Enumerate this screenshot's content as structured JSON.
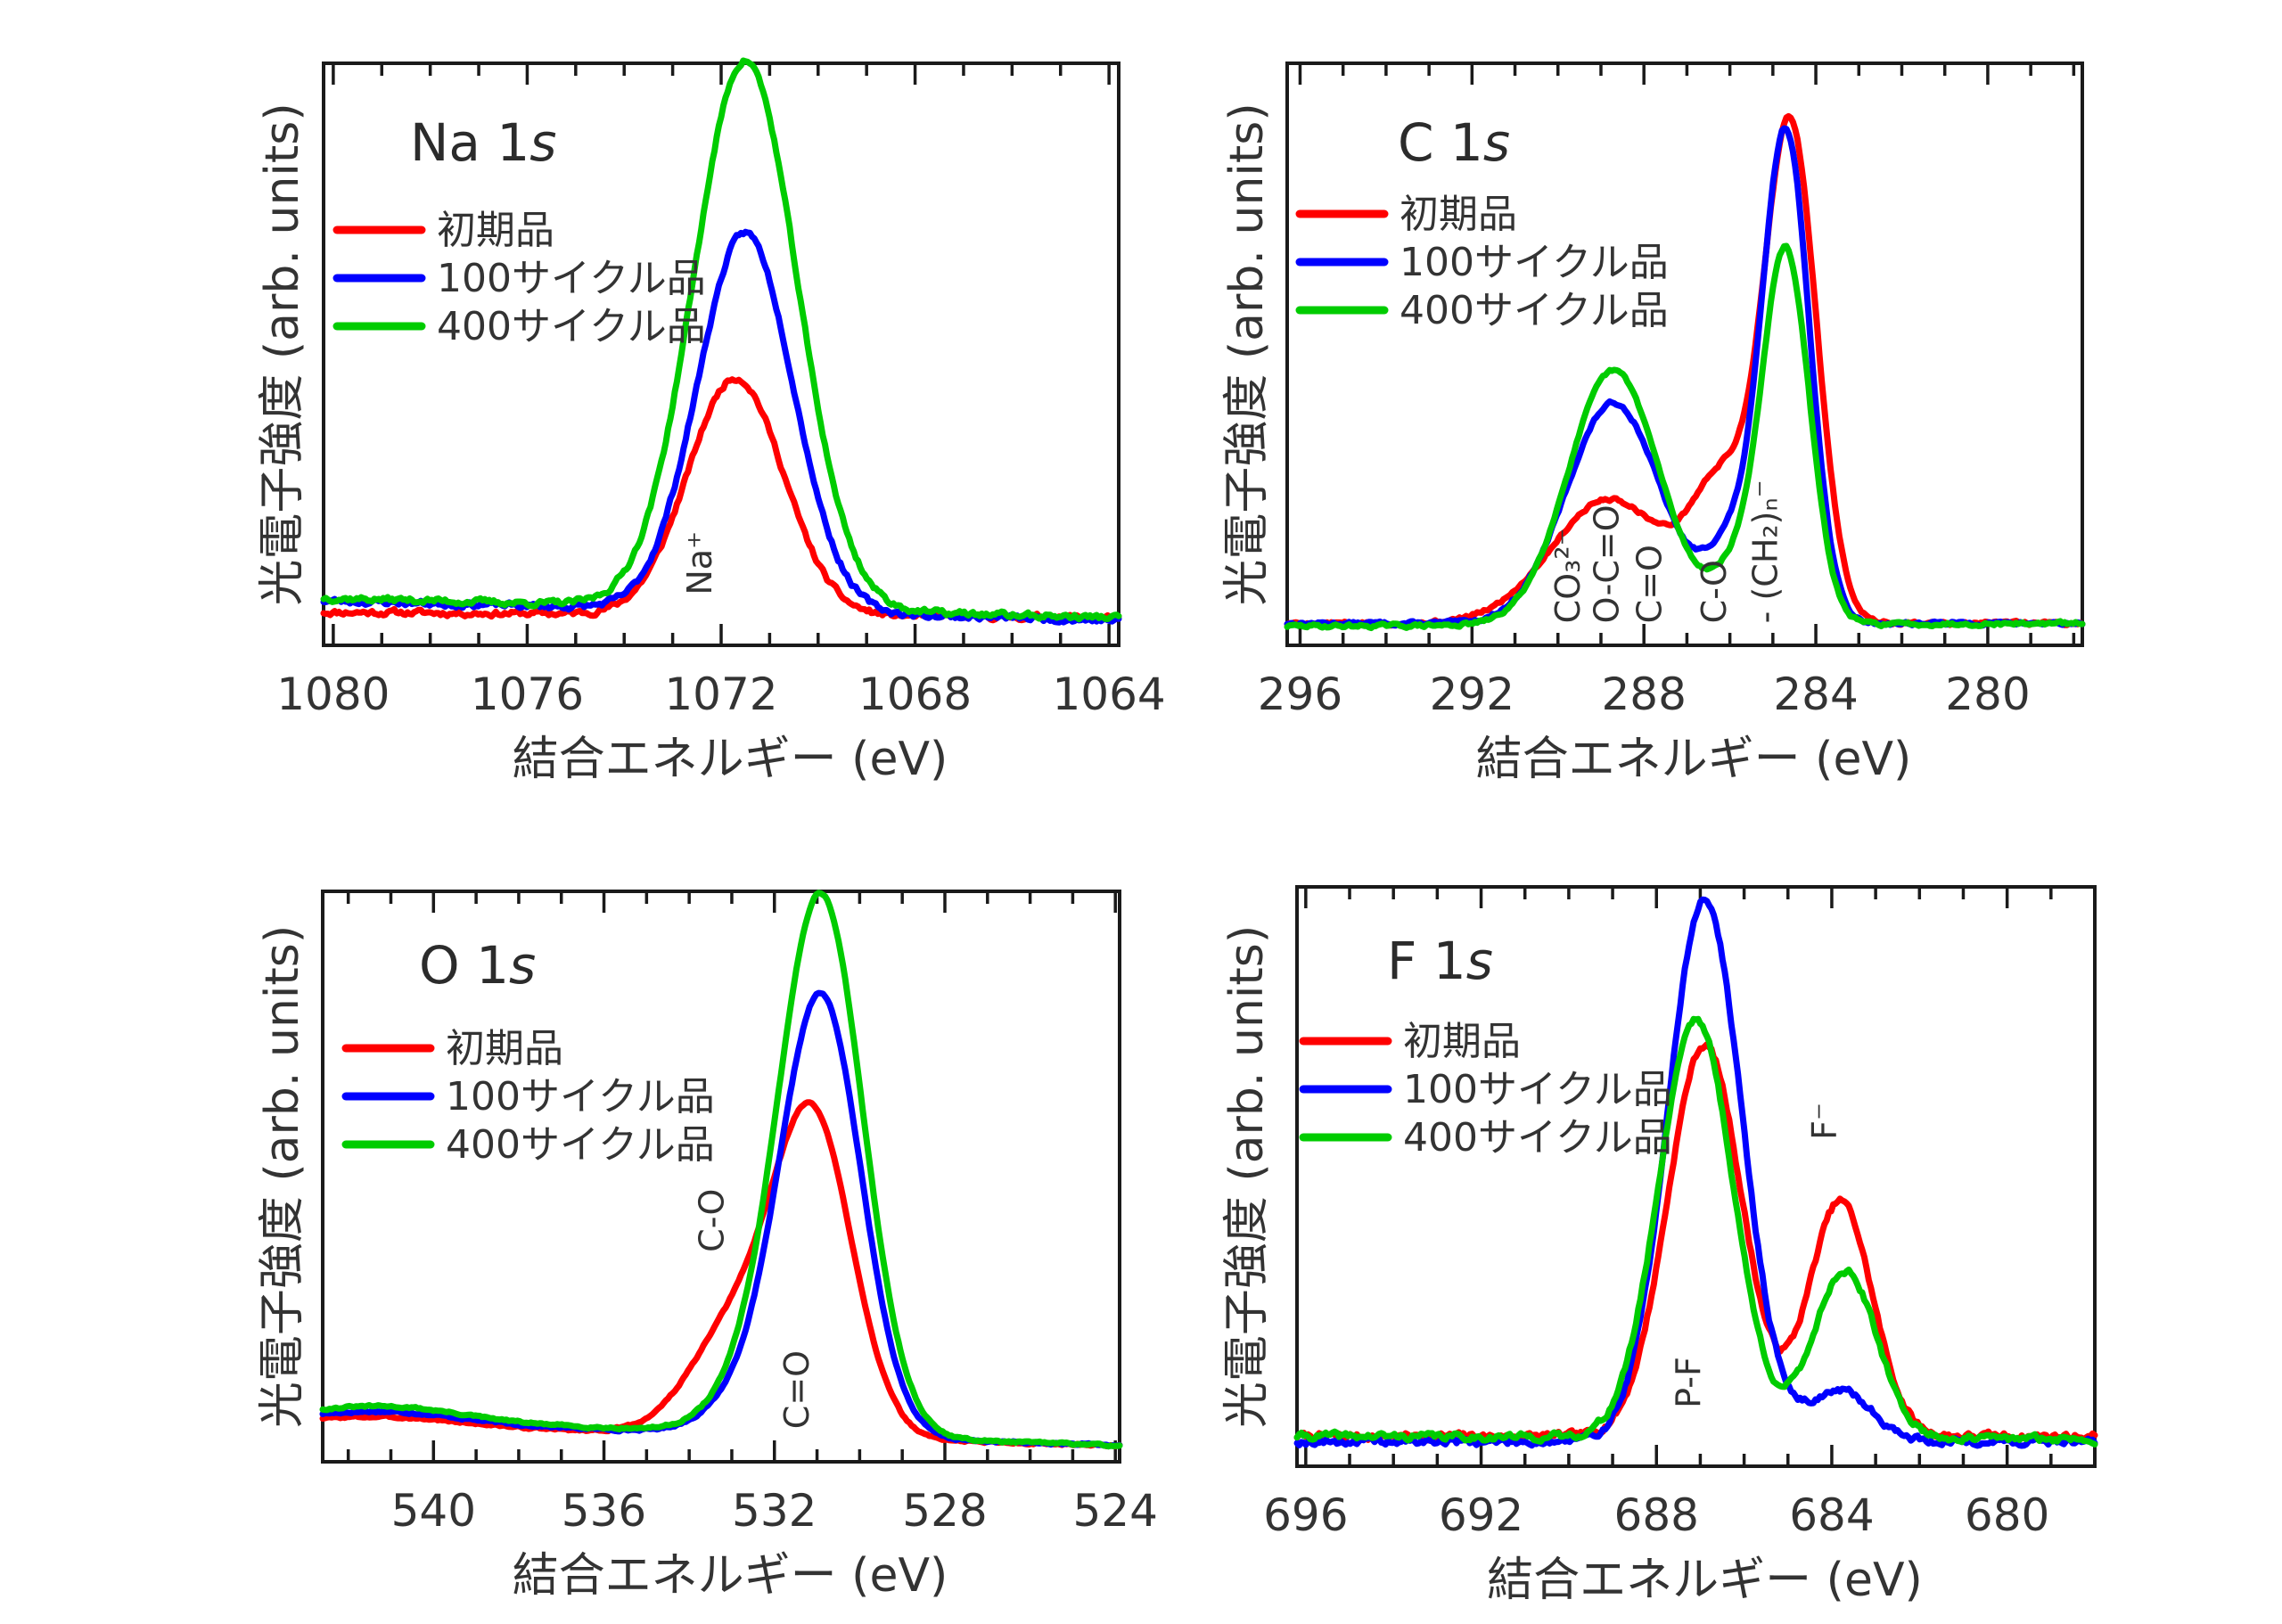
{
  "figure": {
    "y_axis_label": "光電子強度 (arb. units)",
    "x_axis_label": "結合エネルギー (eV)"
  },
  "legend": [
    {
      "label": "初期品",
      "color": "#ff0000"
    },
    {
      "label": "100サイクル品",
      "color": "#0000ff"
    },
    {
      "label": "400サイクル品",
      "color": "#00cc00"
    }
  ],
  "chart_data": [
    {
      "type": "line",
      "title": "Na 1s",
      "title_main": "Na 1",
      "title_italic": "s",
      "xlabel": "結合エネルギー (eV)",
      "ylabel": "光電子強度 (arb. units)",
      "xlim": [
        1080.2,
        1063.8
      ],
      "x_reversed": true,
      "xticks": [
        1080,
        1076,
        1072,
        1068,
        1064
      ],
      "minor_tick_step": 1,
      "ylim": [
        0,
        1.0
      ],
      "grid": false,
      "legend_position": "top-left",
      "annotations": [
        {
          "text": "Na⁺",
          "x": 1072.2,
          "y": 0.07,
          "rotation": -90
        }
      ],
      "series": [
        {
          "name": "初期品",
          "color": "#ff0000",
          "baseline": [
            0.04,
            0.03
          ],
          "peaks": [
            {
              "center": 1071.7,
              "height": 0.42,
              "fwhm": 2.3
            }
          ],
          "noise": 0.008,
          "seed": 11
        },
        {
          "name": "100サイクル品",
          "color": "#0000ff",
          "baseline": [
            0.06,
            0.025
          ],
          "peaks": [
            {
              "center": 1071.5,
              "height": 0.67,
              "fwhm": 2.3
            }
          ],
          "noise": 0.008,
          "seed": 23
        },
        {
          "name": "400サイクル品",
          "color": "#00cc00",
          "baseline": [
            0.065,
            0.03
          ],
          "peaks": [
            {
              "center": 1071.5,
              "height": 0.97,
              "fwhm": 2.5
            }
          ],
          "noise": 0.008,
          "seed": 37
        }
      ]
    },
    {
      "type": "line",
      "title": "C 1s",
      "title_main": "C 1",
      "title_italic": "s",
      "xlabel": "結合エネルギー (eV)",
      "ylabel": "光電子強度 (arb. units)",
      "xlim": [
        296.3,
        277.8
      ],
      "x_reversed": true,
      "xticks": [
        296,
        292,
        288,
        284,
        280
      ],
      "minor_tick_step": 1,
      "ylim": [
        0,
        1.0
      ],
      "grid": false,
      "legend_position": "top-left",
      "annotations": [
        {
          "text": "CO₃²⁻",
          "x": 289.5,
          "y": 0.02,
          "rotation": -90
        },
        {
          "text": "O-C=O",
          "x": 288.6,
          "y": 0.02,
          "rotation": -90
        },
        {
          "text": "C=O",
          "x": 287.6,
          "y": 0.02,
          "rotation": -90
        },
        {
          "text": "C-O",
          "x": 286.1,
          "y": 0.02,
          "rotation": -90
        },
        {
          "text": "- (CH₂)ₙ⁻",
          "x": 284.9,
          "y": 0.02,
          "rotation": -90
        }
      ],
      "series": [
        {
          "name": "初期品",
          "color": "#ff0000",
          "baseline": [
            0.02,
            0.02
          ],
          "peaks": [
            {
              "center": 284.6,
              "height": 0.88,
              "fwhm": 1.45
            },
            {
              "center": 286.2,
              "height": 0.22,
              "fwhm": 1.6
            },
            {
              "center": 288.8,
              "height": 0.22,
              "fwhm": 3.2
            }
          ],
          "noise": 0.005,
          "seed": 5
        },
        {
          "name": "100サイクル品",
          "color": "#0000ff",
          "baseline": [
            0.02,
            0.02
          ],
          "peaks": [
            {
              "center": 284.7,
              "height": 0.87,
              "fwhm": 1.3
            },
            {
              "center": 286.0,
              "height": 0.12,
              "fwhm": 1.3
            },
            {
              "center": 288.7,
              "height": 0.39,
              "fwhm": 2.6
            }
          ],
          "noise": 0.005,
          "seed": 13
        },
        {
          "name": "400サイクル品",
          "color": "#00cc00",
          "baseline": [
            0.015,
            0.02
          ],
          "peaks": [
            {
              "center": 284.7,
              "height": 0.66,
              "fwhm": 1.3
            },
            {
              "center": 285.9,
              "height": 0.08,
              "fwhm": 1.3
            },
            {
              "center": 288.7,
              "height": 0.45,
              "fwhm": 2.5
            }
          ],
          "noise": 0.005,
          "seed": 29
        }
      ]
    },
    {
      "type": "line",
      "title": "O 1s",
      "title_main": "O 1",
      "title_italic": "s",
      "xlabel": "結合エネルギー (eV)",
      "ylabel": "光電子強度 (arb. units)",
      "xlim": [
        542.6,
        523.9
      ],
      "x_reversed": true,
      "xticks": [
        540,
        536,
        532,
        528,
        524
      ],
      "minor_tick_step": 1,
      "ylim": [
        0,
        1.0
      ],
      "grid": false,
      "legend_position": "top-left",
      "annotations": [
        {
          "text": "C-O",
          "x": 533.2,
          "y": 0.36,
          "rotation": -90
        },
        {
          "text": "C=O",
          "x": 531.2,
          "y": 0.04,
          "rotation": -90
        }
      ],
      "series": [
        {
          "name": "初期品",
          "color": "#ff0000",
          "baseline": [
            0.05,
            0.01
          ],
          "peaks": [
            {
              "center": 531.1,
              "height": 0.57,
              "fwhm": 2.2
            },
            {
              "center": 533.0,
              "height": 0.18,
              "fwhm": 2.4
            },
            {
              "center": 541.0,
              "height": 0.015,
              "fwhm": 4.0
            }
          ],
          "noise": 0.003,
          "seed": 3
        },
        {
          "name": "100サイクル品",
          "color": "#0000ff",
          "baseline": [
            0.055,
            0.01
          ],
          "peaks": [
            {
              "center": 530.9,
              "height": 0.79,
              "fwhm": 2.2
            },
            {
              "center": 532.6,
              "height": 0.06,
              "fwhm": 2.2
            },
            {
              "center": 541.0,
              "height": 0.02,
              "fwhm": 4.0
            }
          ],
          "noise": 0.003,
          "seed": 17
        },
        {
          "name": "400サイクル品",
          "color": "#00cc00",
          "baseline": [
            0.06,
            0.01
          ],
          "peaks": [
            {
              "center": 530.9,
              "height": 0.97,
              "fwhm": 2.3
            },
            {
              "center": 532.6,
              "height": 0.06,
              "fwhm": 2.2
            },
            {
              "center": 541.0,
              "height": 0.025,
              "fwhm": 4.0
            }
          ],
          "noise": 0.003,
          "seed": 31
        }
      ]
    },
    {
      "type": "line",
      "title": "F 1s",
      "title_main": "F 1",
      "title_italic": "s",
      "xlabel": "結合エネルギー (eV)",
      "ylabel": "光電子強度 (arb. units)",
      "xlim": [
        696.2,
        678.0
      ],
      "x_reversed": true,
      "xticks": [
        696,
        692,
        688,
        684,
        680
      ],
      "minor_tick_step": 1,
      "ylim": [
        0,
        1.0
      ],
      "grid": false,
      "legend_position": "top-left",
      "annotations": [
        {
          "text": "P-F",
          "x": 687.0,
          "y": 0.08,
          "rotation": -90
        },
        {
          "text": "F⁻",
          "x": 683.9,
          "y": 0.56,
          "rotation": -90
        }
      ],
      "series": [
        {
          "name": "初期品",
          "color": "#ff0000",
          "baseline": [
            0.03,
            0.03
          ],
          "peaks": [
            {
              "center": 686.9,
              "height": 0.7,
              "fwhm": 2.0
            },
            {
              "center": 683.8,
              "height": 0.42,
              "fwhm": 1.7
            }
          ],
          "noise": 0.01,
          "seed": 7
        },
        {
          "name": "100サイクル品",
          "color": "#0000ff",
          "baseline": [
            0.02,
            0.02
          ],
          "peaks": [
            {
              "center": 686.9,
              "height": 0.97,
              "fwhm": 2.0
            },
            {
              "center": 683.8,
              "height": 0.09,
              "fwhm": 1.7
            }
          ],
          "noise": 0.01,
          "seed": 19
        },
        {
          "name": "400サイクル品",
          "color": "#00cc00",
          "baseline": [
            0.03,
            0.025
          ],
          "peaks": [
            {
              "center": 687.1,
              "height": 0.75,
              "fwhm": 2.0
            },
            {
              "center": 683.7,
              "height": 0.3,
              "fwhm": 1.7
            }
          ],
          "noise": 0.01,
          "seed": 41
        }
      ]
    }
  ]
}
